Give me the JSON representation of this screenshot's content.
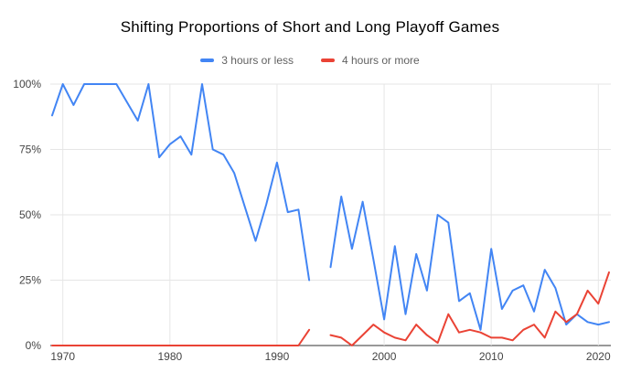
{
  "chart_data": {
    "type": "line",
    "title": "Shifting Proportions of Short and Long Playoff Games",
    "x": [
      1969,
      1970,
      1971,
      1972,
      1973,
      1974,
      1975,
      1976,
      1977,
      1978,
      1979,
      1980,
      1981,
      1982,
      1983,
      1984,
      1985,
      1986,
      1987,
      1988,
      1989,
      1990,
      1991,
      1992,
      1993,
      1994,
      1995,
      1996,
      1997,
      1998,
      1999,
      2000,
      2001,
      2002,
      2003,
      2004,
      2005,
      2006,
      2007,
      2008,
      2009,
      2010,
      2011,
      2012,
      2013,
      2014,
      2015,
      2016,
      2017,
      2018,
      2019,
      2020,
      2021
    ],
    "series": [
      {
        "name": "3 hours or less",
        "color": "#4285F4",
        "values": [
          88,
          100,
          92,
          100,
          100,
          100,
          100,
          93,
          86,
          100,
          72,
          77,
          80,
          73,
          100,
          75,
          73,
          66,
          53,
          40,
          54,
          70,
          51,
          52,
          25,
          null,
          30,
          57,
          37,
          55,
          33,
          10,
          38,
          12,
          35,
          21,
          50,
          47,
          17,
          20,
          6,
          37,
          14,
          21,
          23,
          13,
          29,
          22,
          8,
          12,
          9,
          8,
          9
        ]
      },
      {
        "name": "4 hours or more",
        "color": "#EA4335",
        "values": [
          0,
          0,
          0,
          0,
          0,
          0,
          0,
          0,
          0,
          0,
          0,
          0,
          0,
          0,
          0,
          0,
          0,
          0,
          0,
          0,
          0,
          0,
          0,
          0,
          6,
          null,
          4,
          3,
          0,
          4,
          8,
          5,
          3,
          2,
          8,
          4,
          1,
          12,
          5,
          6,
          5,
          3,
          3,
          2,
          6,
          8,
          3,
          13,
          9,
          12,
          21,
          16,
          28
        ]
      }
    ],
    "xlabel": "",
    "ylabel": "",
    "ylim": [
      0,
      100
    ],
    "yticks": [
      "0%",
      "25%",
      "50%",
      "75%",
      "100%"
    ],
    "ytick_values": [
      0,
      25,
      50,
      75,
      100
    ],
    "xticks": [
      "1970",
      "1980",
      "1990",
      "2000",
      "2010",
      "2020"
    ],
    "xtick_values": [
      1970,
      1980,
      1990,
      2000,
      2010,
      2020
    ],
    "grid": true,
    "legend_position": "top",
    "colors": {
      "grid_line": "#e6e6e6",
      "axis_line": "#333333",
      "tick_text": "#444444",
      "background": "#ffffff"
    }
  }
}
